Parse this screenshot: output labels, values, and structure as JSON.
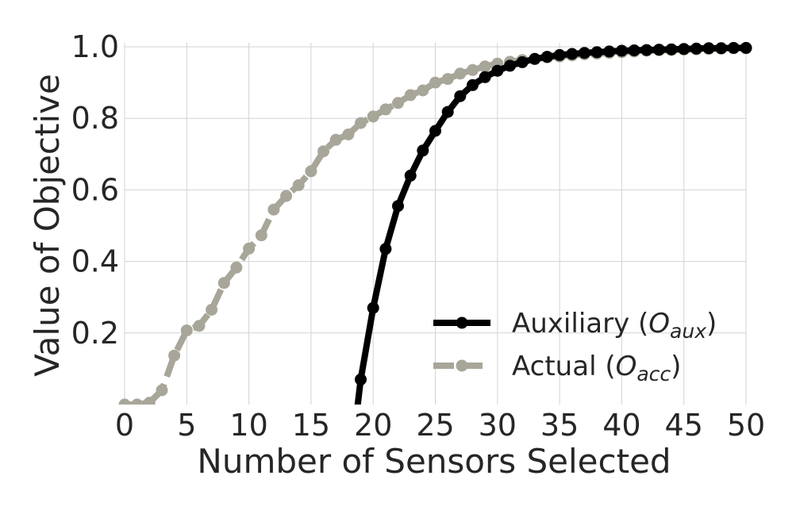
{
  "chart_data": {
    "type": "line",
    "xlabel": "Number of Sensors Selected",
    "ylabel": "Value of Objective",
    "xlim": [
      0,
      50
    ],
    "ylim": [
      0.0,
      1.0
    ],
    "x_ticks": [
      0,
      5,
      10,
      15,
      20,
      25,
      30,
      35,
      40,
      45,
      50
    ],
    "y_ticks": [
      0.2,
      0.4,
      0.6,
      0.8,
      1.0
    ],
    "x_tick_labels": [
      "0",
      "5",
      "10",
      "15",
      "20",
      "25",
      "30",
      "35",
      "40",
      "45",
      "50"
    ],
    "y_tick_labels": [
      "0.2",
      "0.4",
      "0.6",
      "0.8",
      "1.0"
    ],
    "grid": true,
    "legend_position": "bottom-right",
    "series": [
      {
        "name_main": "Auxiliary (",
        "name_var": "O",
        "name_sub": "aux",
        "name_end": ")",
        "color": "#000000",
        "line_style": "solid",
        "marker_edge": "#000000",
        "x": [
          19,
          20,
          21,
          22,
          23,
          24,
          25,
          26,
          27,
          28,
          29,
          30,
          31,
          32,
          33,
          34,
          35,
          36,
          37,
          38,
          39,
          40,
          41,
          42,
          43,
          44,
          45,
          46,
          47,
          48,
          49,
          50
        ],
        "y": [
          0.07,
          0.27,
          0.435,
          0.555,
          0.64,
          0.71,
          0.765,
          0.818,
          0.862,
          0.893,
          0.915,
          0.933,
          0.947,
          0.957,
          0.966,
          0.972,
          0.977,
          0.98,
          0.983,
          0.985,
          0.987,
          0.989,
          0.99,
          0.991,
          0.992,
          0.993,
          0.994,
          0.995,
          0.996,
          0.996,
          0.997,
          0.997
        ]
      },
      {
        "name_main": "Actual (",
        "name_var": "O",
        "name_sub": "acc",
        "name_end": ")",
        "color": "#a8a699",
        "line_style": "dashed",
        "marker_edge": "#a8a699",
        "x": [
          0,
          1,
          2,
          3,
          4,
          5,
          6,
          7,
          8,
          9,
          10,
          11,
          12,
          13,
          14,
          15,
          16,
          17,
          18,
          19,
          20,
          21,
          22,
          23,
          24,
          25,
          26,
          27,
          28,
          29,
          30,
          31,
          32,
          33,
          34,
          35,
          36,
          37,
          38,
          39,
          40,
          41,
          42,
          43,
          44,
          45,
          46,
          47,
          48,
          49,
          50
        ],
        "y": [
          0.0,
          0.0,
          0.005,
          0.04,
          0.137,
          0.207,
          0.22,
          0.265,
          0.34,
          0.383,
          0.436,
          0.473,
          0.545,
          0.583,
          0.613,
          0.652,
          0.708,
          0.74,
          0.755,
          0.787,
          0.805,
          0.825,
          0.843,
          0.865,
          0.878,
          0.9,
          0.91,
          0.925,
          0.935,
          0.945,
          0.953,
          0.958,
          0.963,
          0.966,
          0.97,
          0.973,
          0.976,
          0.979,
          0.981,
          0.983,
          0.985,
          0.987,
          0.989,
          0.99,
          0.991,
          0.992,
          0.993,
          0.994,
          0.995,
          0.996,
          0.996
        ]
      }
    ]
  }
}
